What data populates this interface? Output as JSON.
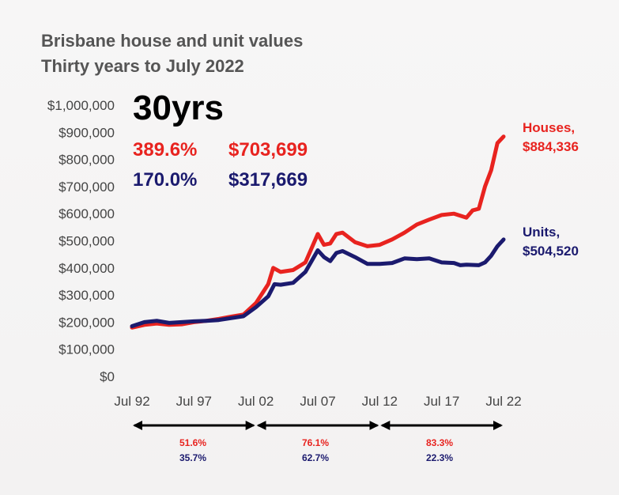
{
  "header": {
    "title": "Brisbane house and unit values",
    "subtitle": "Thirty years to July 2022"
  },
  "summary": {
    "period": "30yrs",
    "houses_pct": "389.6%",
    "houses_change": "$703,699",
    "units_pct": "170.0%",
    "units_change": "$317,669"
  },
  "end_labels": {
    "houses_name": "Houses,",
    "houses_value": "$884,336",
    "units_name": "Units,",
    "units_value": "$504,520"
  },
  "periods": [
    {
      "houses": "51.6%",
      "units": "35.7%"
    },
    {
      "houses": "76.1%",
      "units": "62.7%"
    },
    {
      "houses": "83.3%",
      "units": "22.3%"
    }
  ],
  "colors": {
    "houses": "#e8231f",
    "units": "#1b1a6e",
    "axis_text": "#444444",
    "title": "#555555"
  },
  "chart_data": {
    "type": "line",
    "title": "Brisbane house and unit values",
    "subtitle": "Thirty years to July 2022",
    "ylim": [
      0,
      1000000
    ],
    "y_ticks": [
      "$0",
      "$100,000",
      "$200,000",
      "$300,000",
      "$400,000",
      "$500,000",
      "$600,000",
      "$700,000",
      "$800,000",
      "$900,000",
      "$1,000,000"
    ],
    "x_ticks": [
      "Jul 92",
      "Jul 97",
      "Jul 02",
      "Jul 07",
      "Jul 12",
      "Jul 17",
      "Jul 22"
    ],
    "x_range": [
      1992.5,
      2022.5
    ],
    "grid": false,
    "legend": "direct labels at right",
    "series": [
      {
        "name": "Houses",
        "x": [
          1992.5,
          1993.5,
          1994.5,
          1995.5,
          1996.5,
          1997.5,
          1998.5,
          1999.5,
          2000.5,
          2001.5,
          2002.5,
          2003.5,
          2003.9,
          2004.5,
          2005.5,
          2006.5,
          2007.5,
          2008.0,
          2008.5,
          2009.0,
          2009.5,
          2010.5,
          2011.5,
          2012.5,
          2013.5,
          2014.5,
          2015.5,
          2016.5,
          2017.5,
          2018.5,
          2019.5,
          2020.0,
          2020.5,
          2021.0,
          2021.5,
          2022.0,
          2022.5
        ],
        "values": [
          180000,
          190000,
          195000,
          190000,
          192000,
          200000,
          205000,
          212000,
          220000,
          228000,
          270000,
          340000,
          400000,
          385000,
          392000,
          420000,
          525000,
          485000,
          490000,
          525000,
          530000,
          495000,
          480000,
          485000,
          505000,
          530000,
          560000,
          578000,
          595000,
          600000,
          585000,
          612000,
          618000,
          700000,
          760000,
          860000,
          884336
        ]
      },
      {
        "name": "Units",
        "x": [
          1992.5,
          1993.5,
          1994.5,
          1995.5,
          1996.5,
          1997.5,
          1998.5,
          1999.5,
          2000.5,
          2001.5,
          2002.5,
          2003.5,
          2004.0,
          2004.5,
          2005.5,
          2006.5,
          2007.5,
          2008.0,
          2008.5,
          2009.0,
          2009.5,
          2010.5,
          2011.5,
          2012.5,
          2013.5,
          2014.5,
          2015.5,
          2016.5,
          2017.5,
          2018.5,
          2019.0,
          2019.5,
          2020.5,
          2021.0,
          2021.5,
          2022.0,
          2022.5
        ],
        "values": [
          185000,
          200000,
          205000,
          197000,
          200000,
          203000,
          205000,
          208000,
          215000,
          222000,
          255000,
          295000,
          340000,
          338000,
          345000,
          385000,
          465000,
          440000,
          425000,
          455000,
          462000,
          440000,
          415000,
          415000,
          418000,
          435000,
          432000,
          435000,
          420000,
          418000,
          410000,
          412000,
          410000,
          420000,
          445000,
          480000,
          504520
        ]
      }
    ]
  }
}
